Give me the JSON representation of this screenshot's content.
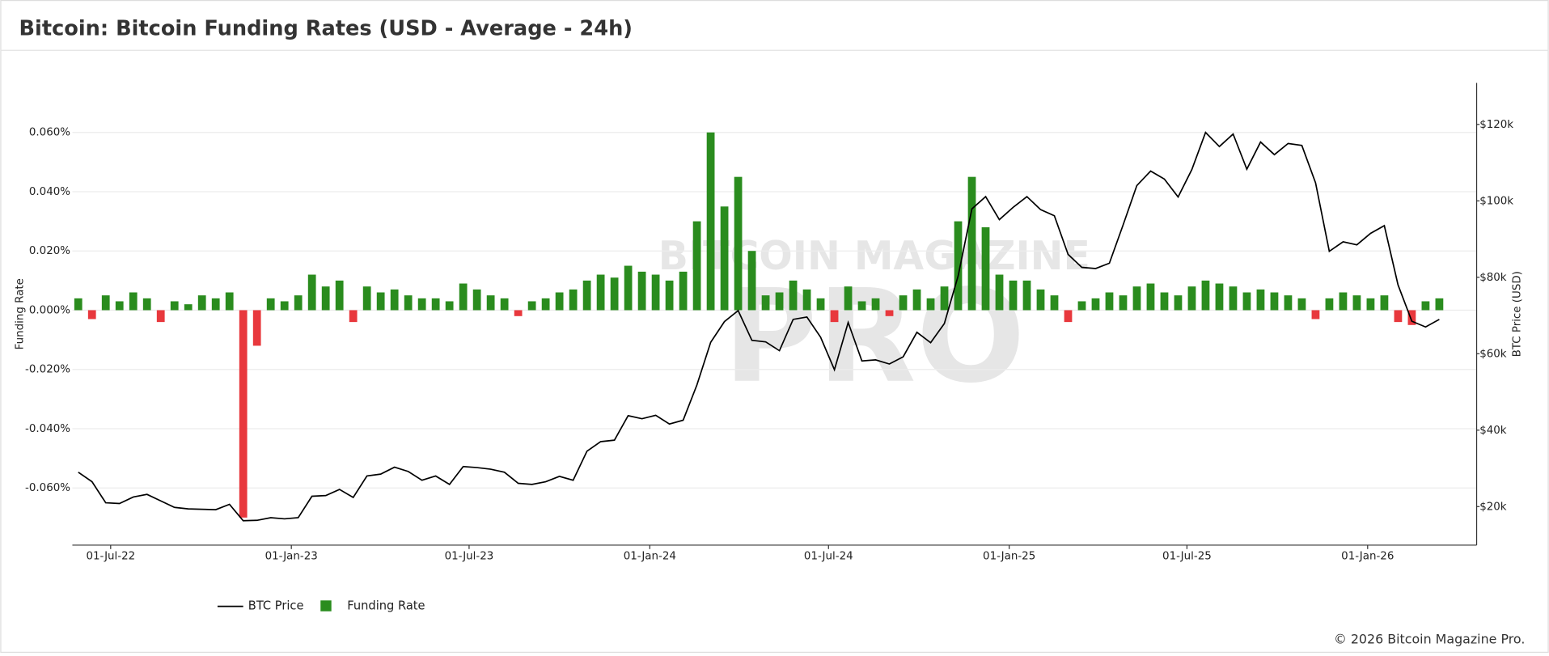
{
  "title": "Bitcoin: Bitcoin Funding Rates (USD - Average - 24h)",
  "watermark": [
    "BITCOIN MAGAZINE",
    "PRO"
  ],
  "copyright": "© 2026 Bitcoin Magazine Pro.",
  "chart_data": {
    "type": "combo",
    "y_label": "Funding Rate",
    "y2_label": "BTC Price (USD)",
    "grid": true,
    "legend": "bottom-left",
    "xlim": [
      "2022-05-23",
      "2026-04-22"
    ],
    "xticks": [
      {
        "value": "2022-07-01",
        "label": "01-Jul-22"
      },
      {
        "value": "2023-01-01",
        "label": "01-Jan-23"
      },
      {
        "value": "2023-07-01",
        "label": "01-Jul-23"
      },
      {
        "value": "2024-01-01",
        "label": "01-Jan-24"
      },
      {
        "value": "2024-07-01",
        "label": "01-Jul-24"
      },
      {
        "value": "2025-01-01",
        "label": "01-Jan-25"
      },
      {
        "value": "2025-07-01",
        "label": "01-Jul-25"
      },
      {
        "value": "2026-01-01",
        "label": "01-Jan-26"
      }
    ],
    "ylim": [
      -0.0793,
      0.0767
    ],
    "yticks": [
      {
        "value": -0.06,
        "label": "-0.060%"
      },
      {
        "value": -0.04,
        "label": "-0.040%"
      },
      {
        "value": -0.02,
        "label": "-0.020%"
      },
      {
        "value": 0,
        "label": "0.000%"
      },
      {
        "value": 0.02,
        "label": "0.020%"
      },
      {
        "value": 0.04,
        "label": "0.040%"
      },
      {
        "value": 0.06,
        "label": "0.060%"
      }
    ],
    "y2lim": [
      9920,
      130850
    ],
    "y2ticks": [
      {
        "value": 20000,
        "label": "$20k"
      },
      {
        "value": 40000,
        "label": "$40k"
      },
      {
        "value": 60000,
        "label": "$60k"
      },
      {
        "value": 80000,
        "label": "$80k"
      },
      {
        "value": 100000,
        "label": "$100k"
      },
      {
        "value": 120000,
        "label": "$120k"
      }
    ],
    "x": [
      "2022-05-29",
      "2022-06-12",
      "2022-06-26",
      "2022-07-10",
      "2022-07-24",
      "2022-08-07",
      "2022-08-21",
      "2022-09-04",
      "2022-09-18",
      "2022-10-02",
      "2022-10-16",
      "2022-10-30",
      "2022-11-13",
      "2022-11-27",
      "2022-12-11",
      "2022-12-25",
      "2023-01-08",
      "2023-01-22",
      "2023-02-05",
      "2023-02-19",
      "2023-03-05",
      "2023-03-19",
      "2023-04-02",
      "2023-04-16",
      "2023-04-30",
      "2023-05-14",
      "2023-05-28",
      "2023-06-11",
      "2023-06-25",
      "2023-07-09",
      "2023-07-23",
      "2023-08-06",
      "2023-08-20",
      "2023-09-03",
      "2023-09-17",
      "2023-10-01",
      "2023-10-15",
      "2023-10-29",
      "2023-11-12",
      "2023-11-26",
      "2023-12-10",
      "2023-12-24",
      "2024-01-07",
      "2024-01-21",
      "2024-02-04",
      "2024-02-18",
      "2024-03-03",
      "2024-03-17",
      "2024-03-31",
      "2024-04-14",
      "2024-04-28",
      "2024-05-12",
      "2024-05-26",
      "2024-06-09",
      "2024-06-23",
      "2024-07-07",
      "2024-07-21",
      "2024-08-04",
      "2024-08-18",
      "2024-09-01",
      "2024-09-15",
      "2024-09-29",
      "2024-10-13",
      "2024-10-27",
      "2024-11-10",
      "2024-11-24",
      "2024-12-08",
      "2024-12-22",
      "2025-01-05",
      "2025-01-19",
      "2025-02-02",
      "2025-02-16",
      "2025-03-02",
      "2025-03-16",
      "2025-03-30",
      "2025-04-13",
      "2025-04-27",
      "2025-05-11",
      "2025-05-25",
      "2025-06-08",
      "2025-06-22",
      "2025-07-06",
      "2025-07-20",
      "2025-08-03",
      "2025-08-17",
      "2025-08-31",
      "2025-09-14",
      "2025-09-28",
      "2025-10-12",
      "2025-10-26",
      "2025-11-09",
      "2025-11-23",
      "2025-12-07",
      "2025-12-21",
      "2026-01-04",
      "2026-01-18",
      "2026-02-01",
      "2026-02-15",
      "2026-03-01",
      "2026-03-15"
    ],
    "series": [
      {
        "name": "BTC Price",
        "type": "line",
        "axis": "y2",
        "color": "#000000",
        "values": [
          29000,
          26500,
          21000,
          20800,
          22500,
          23200,
          21500,
          19800,
          19400,
          19300,
          19200,
          20600,
          16300,
          16400,
          17100,
          16800,
          17100,
          22700,
          22900,
          24500,
          22400,
          28000,
          28500,
          30300,
          29200,
          26900,
          28000,
          25800,
          30500,
          30200,
          29800,
          29000,
          26100,
          25800,
          26500,
          27900,
          26900,
          34500,
          37000,
          37400,
          43800,
          43000,
          43900,
          41600,
          42600,
          51800,
          63000,
          68400,
          71300,
          63500,
          63100,
          60800,
          69000,
          69600,
          64300,
          55800,
          68200,
          58100,
          58400,
          57300,
          59200,
          65600,
          62900,
          67900,
          80400,
          97900,
          101100,
          95100,
          98300,
          101100,
          97700,
          96100,
          86000,
          82600,
          82300,
          83700,
          93700,
          104000,
          107800,
          105700,
          101000,
          108200,
          117900,
          114200,
          117500,
          108300,
          115400,
          112100,
          115000,
          114500,
          104700,
          86800,
          89300,
          88500,
          91500,
          93500,
          78000,
          68500,
          67000,
          69000
        ]
      },
      {
        "name": "Funding Rate",
        "type": "bar",
        "axis": "y",
        "color": "#2a8c1e",
        "negative_color": "#e8383d",
        "values": [
          0.004,
          -0.003,
          0.005,
          0.003,
          0.006,
          0.004,
          -0.004,
          0.003,
          0.002,
          0.005,
          0.004,
          0.006,
          -0.07,
          -0.012,
          0.004,
          0.003,
          0.005,
          0.012,
          0.008,
          0.01,
          -0.004,
          0.008,
          0.006,
          0.007,
          0.005,
          0.004,
          0.004,
          0.003,
          0.009,
          0.007,
          0.005,
          0.004,
          -0.002,
          0.003,
          0.004,
          0.006,
          0.007,
          0.01,
          0.012,
          0.011,
          0.015,
          0.013,
          0.012,
          0.01,
          0.013,
          0.03,
          0.06,
          0.035,
          0.045,
          0.02,
          0.005,
          0.006,
          0.01,
          0.007,
          0.004,
          -0.004,
          0.008,
          0.003,
          0.004,
          -0.002,
          0.005,
          0.007,
          0.004,
          0.008,
          0.03,
          0.045,
          0.028,
          0.012,
          0.01,
          0.01,
          0.007,
          0.005,
          -0.004,
          0.003,
          0.004,
          0.006,
          0.005,
          0.008,
          0.009,
          0.006,
          0.005,
          0.008,
          0.01,
          0.009,
          0.008,
          0.006,
          0.007,
          0.006,
          0.005,
          0.004,
          -0.003,
          0.004,
          0.006,
          0.005,
          0.004,
          0.005,
          -0.004,
          -0.005,
          0.003,
          0.004
        ]
      }
    ]
  }
}
